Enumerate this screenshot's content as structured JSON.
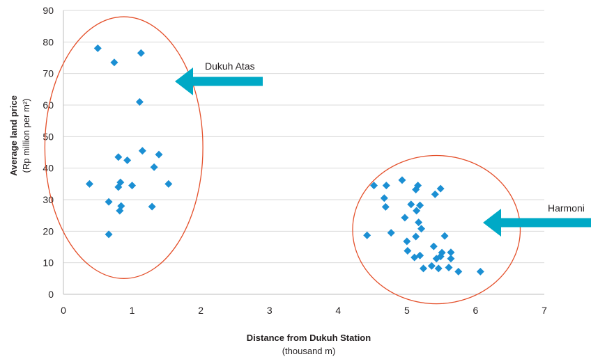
{
  "chart_data": {
    "type": "scatter",
    "xlabel": "Distance from Dukuh Station",
    "xlabel_unit": "(thousand m)",
    "ylabel": "Average land price",
    "ylabel_unit": "(Rp million per m²)",
    "xlim": [
      0,
      7
    ],
    "ylim": [
      0,
      90
    ],
    "xticks": [
      "0",
      "1",
      "2",
      "3",
      "4",
      "5",
      "6",
      "7"
    ],
    "yticks": [
      "0",
      "10",
      "20",
      "30",
      "40",
      "50",
      "60",
      "70",
      "80",
      "90"
    ],
    "grid": "horizontal",
    "marker_color": "#1b8fd3",
    "series": [
      {
        "points": [
          [
            0.5,
            78
          ],
          [
            0.74,
            73.5
          ],
          [
            1.13,
            76.5
          ],
          [
            1.11,
            61
          ],
          [
            0.8,
            43.5
          ],
          [
            0.93,
            42.5
          ],
          [
            1.15,
            45.5
          ],
          [
            1.39,
            44.3
          ],
          [
            1.32,
            40.3
          ],
          [
            0.38,
            35
          ],
          [
            0.83,
            35.5
          ],
          [
            0.8,
            34
          ],
          [
            1.0,
            34.5
          ],
          [
            1.53,
            35
          ],
          [
            0.66,
            29.3
          ],
          [
            0.84,
            28
          ],
          [
            0.82,
            26.5
          ],
          [
            1.29,
            27.8
          ],
          [
            0.66,
            19
          ]
        ]
      },
      {
        "points": [
          [
            4.42,
            18.7
          ],
          [
            4.52,
            34.5
          ],
          [
            4.67,
            30.5
          ],
          [
            4.7,
            34.5
          ],
          [
            4.69,
            27.7
          ],
          [
            4.77,
            19.5
          ],
          [
            4.93,
            36.2
          ],
          [
            4.97,
            24.3
          ],
          [
            5.0,
            16.8
          ],
          [
            5.01,
            13.8
          ],
          [
            5.06,
            28.5
          ],
          [
            5.13,
            33.2
          ],
          [
            5.16,
            34.5
          ],
          [
            5.14,
            26.5
          ],
          [
            5.19,
            28.2
          ],
          [
            5.17,
            22.8
          ],
          [
            5.21,
            20.8
          ],
          [
            5.13,
            18.3
          ],
          [
            5.11,
            11.7
          ],
          [
            5.19,
            12.3
          ],
          [
            5.24,
            8.2
          ],
          [
            5.36,
            9
          ],
          [
            5.41,
            31.7
          ],
          [
            5.49,
            33.5
          ],
          [
            5.39,
            15.2
          ],
          [
            5.43,
            11.3
          ],
          [
            5.46,
            8.2
          ],
          [
            5.49,
            12
          ],
          [
            5.51,
            13.2
          ],
          [
            5.55,
            18.5
          ],
          [
            5.61,
            8.5
          ],
          [
            5.64,
            13.3
          ],
          [
            5.64,
            11.3
          ],
          [
            5.75,
            7.2
          ],
          [
            6.07,
            7.2
          ]
        ]
      }
    ],
    "ellipses": [
      {
        "cx": 0.88,
        "cy": 46.5,
        "rx": 1.15,
        "ry": 41.5
      },
      {
        "cx": 5.43,
        "cy": 20.5,
        "rx": 1.22,
        "ry": 23.5
      }
    ],
    "annotations": [
      {
        "text": "Dukuh Atas",
        "arrow_color": "#00a9c6"
      },
      {
        "text": "Harmoni",
        "arrow_color": "#00a9c6"
      }
    ],
    "ellipse_color": "#e4502b"
  }
}
